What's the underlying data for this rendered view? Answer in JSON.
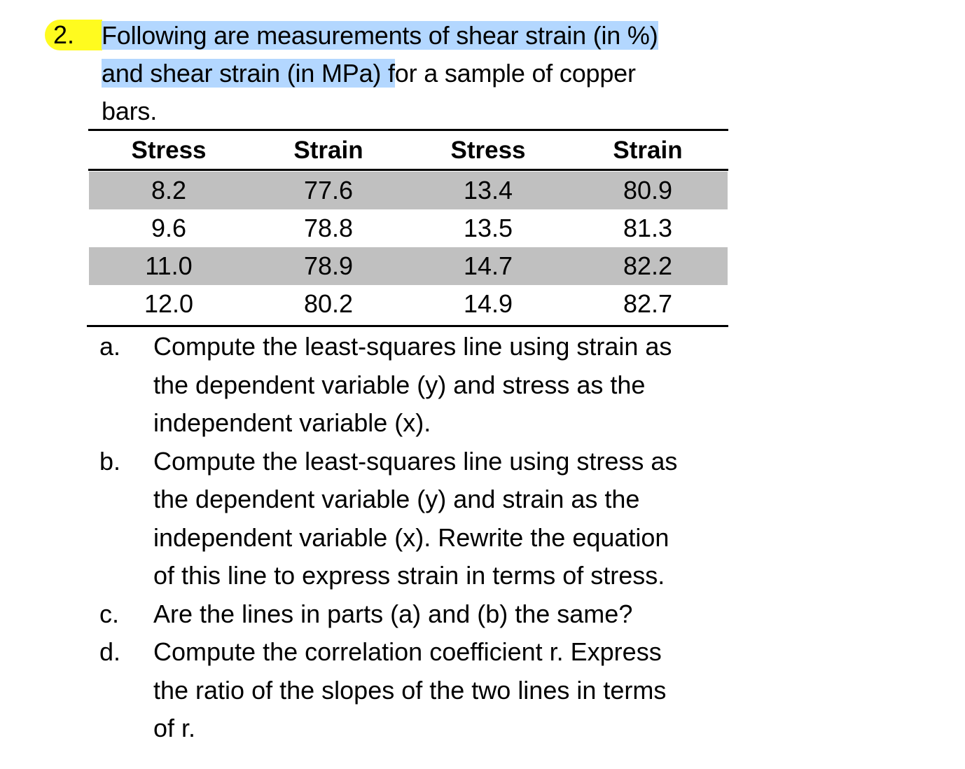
{
  "question": {
    "number": "2.",
    "stem_lines": [
      {
        "highlighted": "Following are measurements of shear strain (in %)",
        "rest": ""
      },
      {
        "highlighted": "and shear strain (in MPa) f",
        "rest": "or a sample of copper"
      },
      {
        "highlighted": "",
        "rest": "bars."
      }
    ],
    "highlight_colors": {
      "number": "#fffb1f",
      "text": "#b3d7ff"
    }
  },
  "table": {
    "headers": [
      "Stress",
      "Strain",
      "Stress",
      "Strain"
    ],
    "rows": [
      [
        "8.2",
        "77.6",
        "13.4",
        "80.9"
      ],
      [
        "9.6",
        "78.8",
        "13.5",
        "81.3"
      ],
      [
        "11.0",
        "78.9",
        "14.7",
        "82.2"
      ],
      [
        "12.0",
        "80.2",
        "14.9",
        "82.7"
      ]
    ],
    "shaded_row_color": "#c0c0c0"
  },
  "parts": [
    {
      "label": "a.",
      "lines": [
        "Compute the least-squares line using strain as",
        "the dependent variable (y) and stress as the",
        "independent variable (x)."
      ]
    },
    {
      "label": "b.",
      "lines": [
        "Compute the least-squares line using stress as",
        "the dependent variable (y) and strain as the",
        "independent variable (x).  Rewrite the equation",
        "of this line to express strain in terms of stress."
      ]
    },
    {
      "label": "c.",
      "lines": [
        "Are the lines in parts (a) and (b) the same?"
      ]
    },
    {
      "label": "d.",
      "lines": [
        "Compute the correlation coefficient r.  Express",
        "the ratio of the slopes of the two lines in terms",
        "of r."
      ]
    }
  ]
}
